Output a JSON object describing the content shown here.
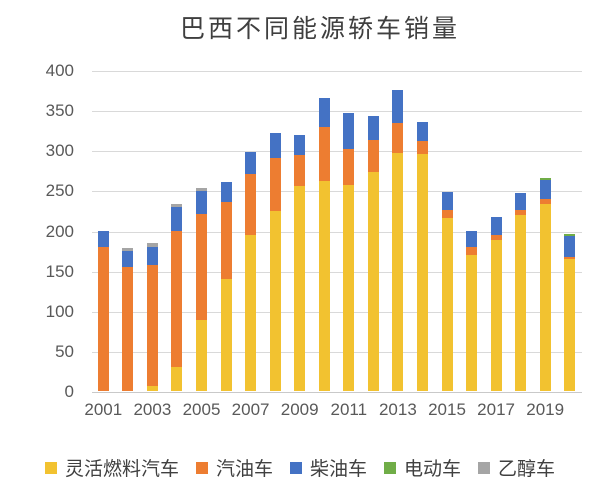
{
  "chart_data": {
    "type": "bar",
    "stacked": true,
    "title": "巴西不同能源轿车销量",
    "categories": [
      "2001",
      "2002",
      "2003",
      "2004",
      "2005",
      "2006",
      "2007",
      "2008",
      "2009",
      "2010",
      "2011",
      "2012",
      "2013",
      "2014",
      "2015",
      "2016",
      "2017",
      "2018",
      "2019",
      "2020"
    ],
    "x_tick_labels": [
      "2001",
      "2003",
      "2005",
      "2007",
      "2009",
      "2011",
      "2013",
      "2015",
      "2017",
      "2019"
    ],
    "y_tick_labels": [
      "0",
      "50",
      "100",
      "150",
      "200",
      "250",
      "300",
      "350",
      "400"
    ],
    "ylim": [
      0,
      400
    ],
    "ytick_step": 50,
    "grid": true,
    "legend_position": "bottom",
    "series": [
      {
        "name": "灵活燃料汽车",
        "color": "#F2C230",
        "values": [
          0,
          0,
          6,
          30,
          88,
          140,
          194,
          224,
          255,
          262,
          257,
          273,
          296,
          295,
          216,
          170,
          188,
          219,
          233,
          164
        ]
      },
      {
        "name": "汽油车",
        "color": "#ED7D31",
        "values": [
          180,
          155,
          151,
          169,
          133,
          95,
          77,
          66,
          39,
          67,
          45,
          40,
          38,
          17,
          10,
          10,
          7,
          7,
          6,
          3
        ]
      },
      {
        "name": "柴油车",
        "color": "#4472C4",
        "values": [
          20,
          19,
          22,
          30,
          28,
          26,
          27,
          32,
          25,
          36,
          44,
          30,
          41,
          23,
          22,
          19,
          22,
          21,
          24,
          26
        ]
      },
      {
        "name": "电动车",
        "color": "#70AD47",
        "values": [
          0,
          0,
          0,
          0,
          0,
          0,
          0,
          0,
          0,
          0,
          0,
          0,
          0,
          0,
          0,
          0,
          0,
          0,
          3,
          3
        ]
      },
      {
        "name": "乙醇车",
        "color": "#A5A5A5",
        "values": [
          0,
          4,
          5,
          4,
          4,
          0,
          0,
          0,
          0,
          0,
          0,
          0,
          0,
          0,
          0,
          0,
          0,
          0,
          0,
          0
        ]
      }
    ]
  }
}
